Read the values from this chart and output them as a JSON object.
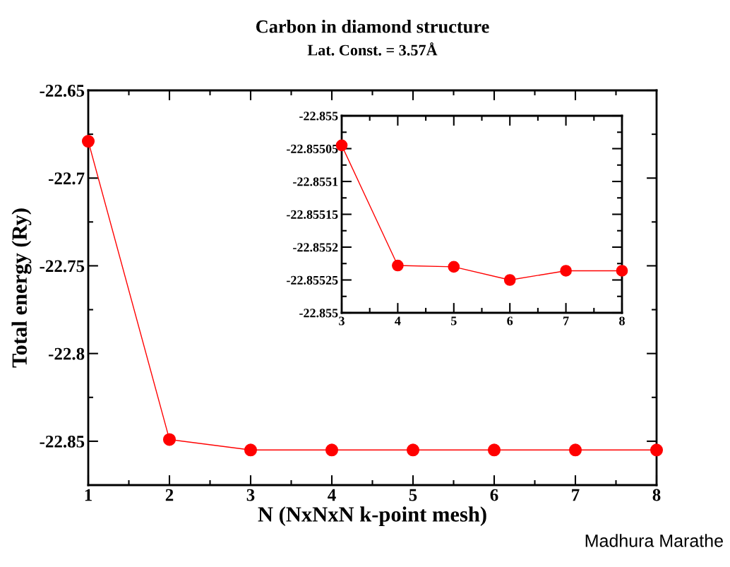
{
  "chart_data": [
    {
      "type": "line",
      "title": "Carbon in diamond structure",
      "subtitle": "Lat. Const. = 3.57Å",
      "xlabel": "N (NxNxN k-point mesh)",
      "ylabel": "Total energy (Ry)",
      "x": [
        1,
        2,
        3,
        4,
        5,
        6,
        7,
        8
      ],
      "series": [
        {
          "color": "#ff0000",
          "values": [
            -22.679,
            -22.849,
            -22.855,
            -22.855,
            -22.855,
            -22.855,
            -22.855,
            -22.855
          ]
        }
      ],
      "xlim": [
        1,
        8
      ],
      "xticks": [
        1,
        2,
        3,
        4,
        5,
        6,
        7,
        8
      ],
      "ylim": [
        -22.875,
        -22.65
      ],
      "yticks": [
        -22.85,
        -22.8,
        -22.75,
        -22.7,
        -22.65
      ],
      "marker": "circle",
      "line_style": "solid",
      "grid": false,
      "legend": false,
      "annotations": [
        "Madhura Marathe"
      ]
    },
    {
      "type": "line",
      "x": [
        3,
        4,
        5,
        6,
        7,
        8
      ],
      "series": [
        {
          "color": "#ff0000",
          "values": [
            -22.855045,
            -22.855228,
            -22.85523,
            -22.85525,
            -22.855236,
            -22.855236
          ]
        }
      ],
      "xlim": [
        3,
        8
      ],
      "xticks": [
        3,
        4,
        5,
        6,
        7,
        8
      ],
      "ylim": [
        -22.8553,
        -22.855
      ],
      "yticks": [
        {
          "value": -22.8553,
          "label": "-22.855"
        },
        {
          "value": -22.85525,
          "label": "-22.85525"
        },
        {
          "value": -22.8552,
          "label": "-22.8552"
        },
        {
          "value": -22.85515,
          "label": "-22.85515"
        },
        {
          "value": -22.8551,
          "label": "-22.8551"
        },
        {
          "value": -22.85505,
          "label": "-22.85505"
        },
        {
          "value": -22.855,
          "label": "-22.855"
        }
      ],
      "marker": "circle",
      "line_style": "solid",
      "grid": false,
      "legend": false
    }
  ]
}
